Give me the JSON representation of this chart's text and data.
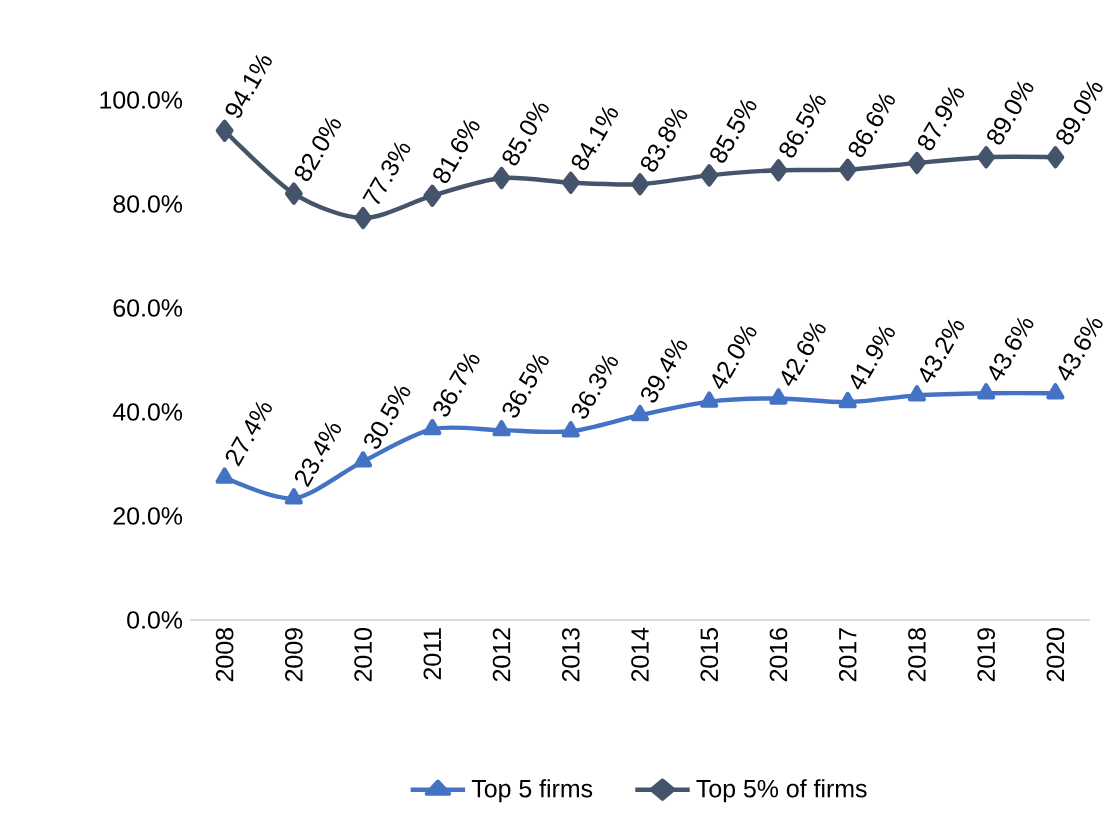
{
  "chart_data": {
    "type": "line",
    "categories": [
      "2008",
      "2009",
      "2010",
      "2011",
      "2012",
      "2013",
      "2014",
      "2015",
      "2016",
      "2017",
      "2018",
      "2019",
      "2020"
    ],
    "series": [
      {
        "name": "Top 5 firms",
        "color": "#4472c4",
        "marker": "triangle",
        "values": [
          27.4,
          23.4,
          30.5,
          36.7,
          36.5,
          36.3,
          39.4,
          42.0,
          42.6,
          41.9,
          43.2,
          43.6,
          43.6
        ],
        "value_labels": [
          "27.4%",
          "23.4%",
          "30.5%",
          "36.7%",
          "36.5%",
          "36.3%",
          "39.4%",
          "42.0%",
          "42.6%",
          "41.9%",
          "43.2%",
          "43.6%",
          "43.6%"
        ]
      },
      {
        "name": "Top 5% of firms",
        "color": "#44546a",
        "marker": "diamond",
        "values": [
          94.1,
          82.0,
          77.3,
          81.6,
          85.0,
          84.1,
          83.8,
          85.5,
          86.5,
          86.6,
          87.9,
          89.0,
          89.0
        ],
        "value_labels": [
          "94.1%",
          "82.0%",
          "77.3%",
          "81.6%",
          "85.0%",
          "84.1%",
          "83.8%",
          "85.5%",
          "86.5%",
          "86.6%",
          "87.9%",
          "89.0%",
          "89.0%"
        ]
      }
    ],
    "ylim": [
      0,
      100
    ],
    "yticks": [
      {
        "value": 0,
        "label": "0.0%"
      },
      {
        "value": 20,
        "label": "20.0%"
      },
      {
        "value": 40,
        "label": "40.0%"
      },
      {
        "value": 60,
        "label": "60.0%"
      },
      {
        "value": 80,
        "label": "80.0%"
      },
      {
        "value": 100,
        "label": "100.0%"
      }
    ],
    "legend": "bottom"
  }
}
